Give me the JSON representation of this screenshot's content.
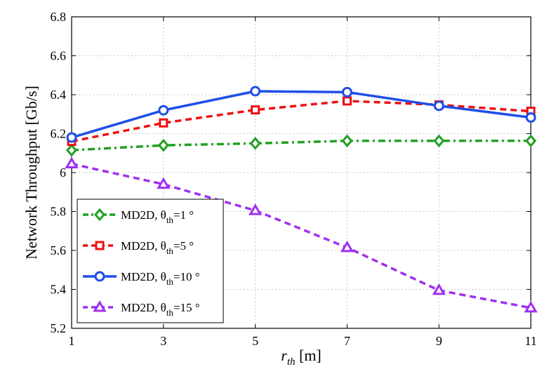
{
  "chart_data": {
    "type": "line",
    "title": "",
    "x": [
      1,
      3,
      5,
      7,
      9,
      11
    ],
    "xlim": [
      1,
      11
    ],
    "ylim": [
      5.2,
      6.8
    ],
    "xticks": [
      1,
      3,
      5,
      7,
      9,
      11
    ],
    "yticks": [
      5.2,
      5.4,
      5.6,
      5.8,
      6,
      6.2,
      6.4,
      6.6,
      6.8
    ],
    "xlabel": {
      "main": "r",
      "sub": "th",
      "unit": " [m]"
    },
    "ylabel": "Network Throughput [Gb/s]",
    "grid": true,
    "legend_position": "bottom-left",
    "series": [
      {
        "name": {
          "prefix": "MD2D, θ",
          "sub": "th",
          "suffix": "=1 °"
        },
        "color": "#22a022",
        "marker": "diamond",
        "dash": "dash-dot",
        "values": [
          6.115,
          6.14,
          6.15,
          6.163,
          6.163,
          6.163
        ]
      },
      {
        "name": {
          "prefix": "MD2D, θ",
          "sub": "th",
          "suffix": "=5 °"
        },
        "color": "#ee1111",
        "marker": "square",
        "dash": "dashed",
        "values": [
          6.16,
          6.255,
          6.322,
          6.368,
          6.348,
          6.315
        ]
      },
      {
        "name": {
          "prefix": "MD2D, θ",
          "sub": "th",
          "suffix": "=10 °"
        },
        "color": "#1f4fe8",
        "marker": "circle",
        "dash": "solid",
        "values": [
          6.18,
          6.32,
          6.418,
          6.413,
          6.343,
          6.283
        ]
      },
      {
        "name": {
          "prefix": "MD2D, θ",
          "sub": "th",
          "suffix": "=15 °"
        },
        "color": "#a030f0",
        "marker": "triangle",
        "dash": "dashed",
        "values": [
          6.045,
          5.94,
          5.805,
          5.615,
          5.395,
          5.305
        ]
      }
    ]
  }
}
